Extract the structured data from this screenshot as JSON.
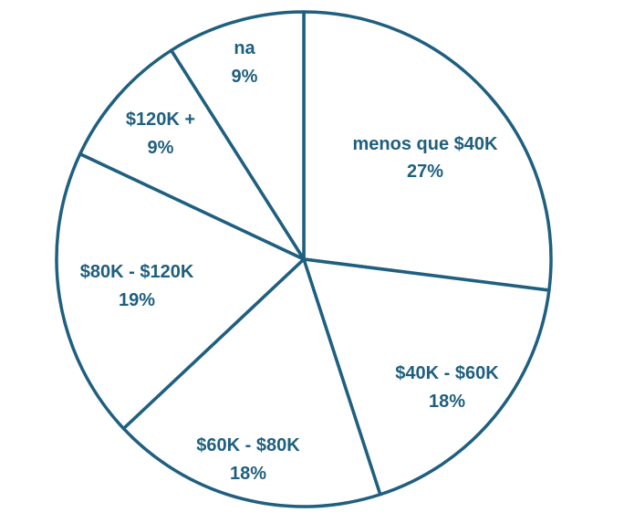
{
  "chart_data": {
    "type": "pie",
    "categories": [
      "menos que $40K",
      "$40K - $60K",
      "$60K - $80K",
      "$80K - $120K",
      "$120K +",
      "na"
    ],
    "values": [
      27,
      18,
      18,
      19,
      9,
      9
    ],
    "value_labels": [
      "27%",
      "18%",
      "18%",
      "19%",
      "9%",
      "9%"
    ],
    "slice_fill": "#ffffff",
    "line_color": "#1f5f7f",
    "text_color": "#1f5f7f",
    "legend": "none",
    "title": ""
  }
}
